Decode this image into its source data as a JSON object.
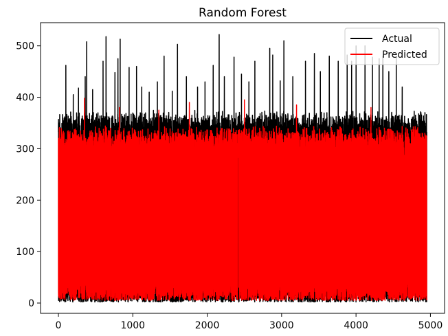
{
  "chart_data": {
    "type": "line",
    "title": "Random Forest",
    "xlabel": "",
    "ylabel": "",
    "xlim": [
      -240,
      5190
    ],
    "ylim": [
      -20,
      545
    ],
    "x_ticks": [
      0,
      1000,
      2000,
      3000,
      4000,
      5000
    ],
    "y_ticks": [
      0,
      100,
      200,
      300,
      400,
      500
    ],
    "grid": false,
    "legend_position": "top-right",
    "series": [
      {
        "name": "Actual",
        "color": "#000000",
        "n_points": 4950,
        "x_range": [
          0,
          4950
        ],
        "typical_range": [
          5,
          360
        ],
        "approx_min": 2,
        "approx_max": 522,
        "peaks": [
          {
            "x": 40,
            "y": 320
          },
          {
            "x": 100,
            "y": 462
          },
          {
            "x": 200,
            "y": 405
          },
          {
            "x": 270,
            "y": 418
          },
          {
            "x": 360,
            "y": 440
          },
          {
            "x": 380,
            "y": 508
          },
          {
            "x": 460,
            "y": 415
          },
          {
            "x": 600,
            "y": 470
          },
          {
            "x": 640,
            "y": 518
          },
          {
            "x": 760,
            "y": 448
          },
          {
            "x": 800,
            "y": 475
          },
          {
            "x": 830,
            "y": 513
          },
          {
            "x": 950,
            "y": 458
          },
          {
            "x": 1050,
            "y": 460
          },
          {
            "x": 1120,
            "y": 420
          },
          {
            "x": 1220,
            "y": 410
          },
          {
            "x": 1330,
            "y": 430
          },
          {
            "x": 1420,
            "y": 480
          },
          {
            "x": 1530,
            "y": 412
          },
          {
            "x": 1600,
            "y": 503
          },
          {
            "x": 1720,
            "y": 440
          },
          {
            "x": 1870,
            "y": 420
          },
          {
            "x": 1970,
            "y": 430
          },
          {
            "x": 2080,
            "y": 462
          },
          {
            "x": 2160,
            "y": 522
          },
          {
            "x": 2230,
            "y": 440
          },
          {
            "x": 2360,
            "y": 478
          },
          {
            "x": 2460,
            "y": 445
          },
          {
            "x": 2560,
            "y": 430
          },
          {
            "x": 2640,
            "y": 470
          },
          {
            "x": 2840,
            "y": 495
          },
          {
            "x": 2880,
            "y": 482
          },
          {
            "x": 2980,
            "y": 432
          },
          {
            "x": 3030,
            "y": 510
          },
          {
            "x": 3150,
            "y": 440
          },
          {
            "x": 3320,
            "y": 470
          },
          {
            "x": 3440,
            "y": 485
          },
          {
            "x": 3520,
            "y": 450
          },
          {
            "x": 3640,
            "y": 480
          },
          {
            "x": 3760,
            "y": 470
          },
          {
            "x": 3880,
            "y": 482
          },
          {
            "x": 3940,
            "y": 470
          },
          {
            "x": 4000,
            "y": 500
          },
          {
            "x": 4120,
            "y": 500
          },
          {
            "x": 4220,
            "y": 478
          },
          {
            "x": 4310,
            "y": 475
          },
          {
            "x": 4360,
            "y": 480
          },
          {
            "x": 4440,
            "y": 450
          },
          {
            "x": 4540,
            "y": 480
          },
          {
            "x": 4620,
            "y": 420
          },
          {
            "x": 4700,
            "y": 350
          },
          {
            "x": 4760,
            "y": 345
          },
          {
            "x": 4830,
            "y": 340
          },
          {
            "x": 4930,
            "y": 330
          }
        ]
      },
      {
        "name": "Predicted",
        "color": "#ff0000",
        "n_points": 4950,
        "x_range": [
          0,
          4950
        ],
        "typical_range": [
          15,
          330
        ],
        "approx_min": 5,
        "approx_max": 400,
        "peaks": [
          {
            "x": 350,
            "y": 398
          },
          {
            "x": 820,
            "y": 380
          },
          {
            "x": 1350,
            "y": 375
          },
          {
            "x": 1760,
            "y": 390
          },
          {
            "x": 2500,
            "y": 395
          },
          {
            "x": 3200,
            "y": 385
          },
          {
            "x": 4200,
            "y": 380
          }
        ]
      }
    ]
  }
}
